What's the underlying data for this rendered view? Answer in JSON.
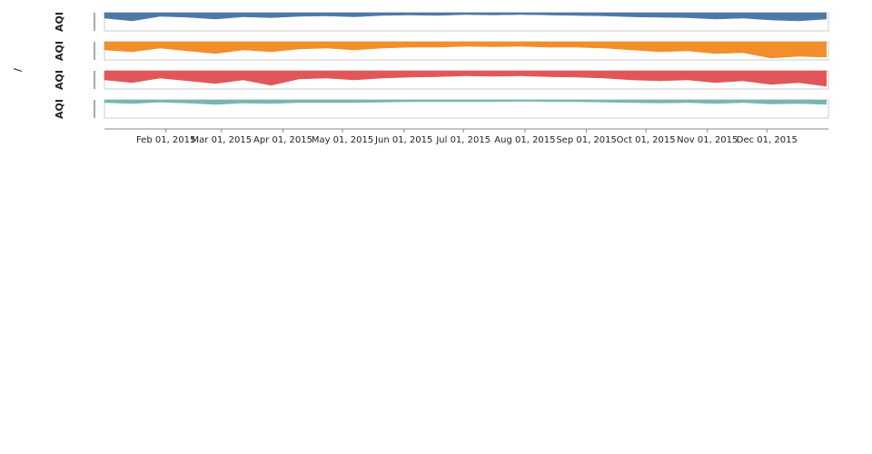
{
  "chart_data": {
    "type": "area",
    "row_title": "/",
    "y_label": "AQI",
    "y_reversed": true,
    "ylim": [
      0,
      200
    ],
    "xlim": [
      "2015-01-01",
      "2016-01-01"
    ],
    "xticks": [
      {
        "value": "2015-02-01",
        "label": "Feb 01, 2015"
      },
      {
        "value": "2015-03-01",
        "label": "Mar 01, 2015"
      },
      {
        "value": "2015-04-01",
        "label": "Apr 01, 2015"
      },
      {
        "value": "2015-05-01",
        "label": "May 01, 2015"
      },
      {
        "value": "2015-06-01",
        "label": "Jun 01, 2015"
      },
      {
        "value": "2015-07-01",
        "label": "Jul 01, 2015"
      },
      {
        "value": "2015-08-01",
        "label": "Aug 01, 2015"
      },
      {
        "value": "2015-09-01",
        "label": "Sep 01, 2015"
      },
      {
        "value": "2015-10-01",
        "label": "Oct 01, 2015"
      },
      {
        "value": "2015-11-01",
        "label": "Nov 01, 2015"
      },
      {
        "value": "2015-12-01",
        "label": "Dec 01, 2015"
      }
    ],
    "x": [
      "2015-01-01",
      "2015-01-15",
      "2015-01-29",
      "2015-02-12",
      "2015-02-26",
      "2015-03-12",
      "2015-03-26",
      "2015-04-09",
      "2015-04-23",
      "2015-05-07",
      "2015-05-21",
      "2015-06-04",
      "2015-06-18",
      "2015-07-02",
      "2015-07-16",
      "2015-07-30",
      "2015-08-13",
      "2015-08-27",
      "2015-09-10",
      "2015-09-24",
      "2015-10-08",
      "2015-10-22",
      "2015-11-05",
      "2015-11-19",
      "2015-12-03",
      "2015-12-17",
      "2015-12-31"
    ],
    "series": [
      {
        "color": "#4e79a7",
        "values": [
          60,
          90,
          40,
          50,
          70,
          45,
          55,
          40,
          35,
          45,
          30,
          25,
          30,
          20,
          25,
          20,
          25,
          30,
          35,
          45,
          50,
          55,
          70,
          60,
          80,
          90,
          70
        ]
      },
      {
        "color": "#f28e2b",
        "values": [
          90,
          110,
          70,
          100,
          130,
          90,
          110,
          80,
          70,
          90,
          70,
          60,
          60,
          50,
          55,
          50,
          60,
          60,
          70,
          90,
          110,
          100,
          130,
          120,
          180,
          160,
          170
        ]
      },
      {
        "color": "#e15759",
        "values": [
          100,
          130,
          80,
          110,
          140,
          100,
          160,
          90,
          80,
          100,
          80,
          70,
          65,
          55,
          60,
          55,
          65,
          70,
          80,
          100,
          110,
          100,
          130,
          110,
          150,
          130,
          170
        ]
      },
      {
        "color": "#76b7b2",
        "values": [
          30,
          40,
          25,
          35,
          50,
          35,
          40,
          30,
          30,
          30,
          25,
          20,
          20,
          20,
          20,
          15,
          20,
          20,
          25,
          30,
          35,
          30,
          40,
          30,
          45,
          40,
          50
        ]
      }
    ]
  }
}
